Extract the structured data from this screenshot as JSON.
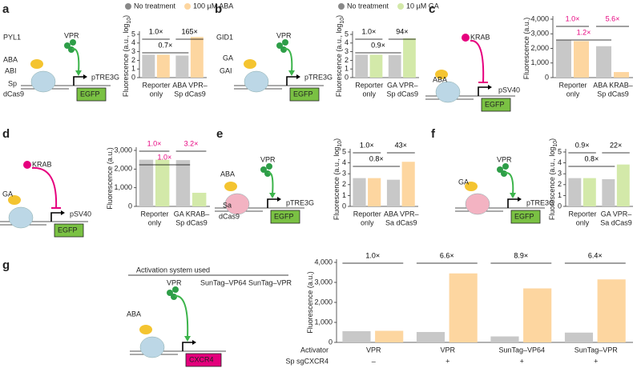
{
  "panels": [
    {
      "letter": "a",
      "labels": [
        "PYL1",
        "VPR",
        "ABA",
        "ABI",
        "Sp",
        "dCas9",
        "pTRE3G",
        "EGFP"
      ]
    },
    {
      "letter": "b",
      "labels": [
        "GID1",
        "VPR",
        "GA",
        "GAI",
        "pTRE3G",
        "EGFP"
      ]
    },
    {
      "letter": "c",
      "labels": [
        "KRAB",
        "ABA",
        "pSV40",
        "EGFP"
      ]
    },
    {
      "letter": "d",
      "labels": [
        "KRAB",
        "GA",
        "pSV40",
        "EGFP"
      ]
    },
    {
      "letter": "e",
      "labels": [
        "VPR",
        "ABA",
        "Sa",
        "dCas9",
        "pTRE3G",
        "EGFP"
      ]
    },
    {
      "letter": "f",
      "labels": [
        "VPR",
        "GA",
        "pTRE3G",
        "EGFP"
      ]
    },
    {
      "letter": "g",
      "labels": [
        "Activation system used",
        "VPR",
        "SunTag–VP64",
        "SunTag–VPR",
        "ABA",
        "CXCR4"
      ]
    }
  ],
  "chart_data": [
    {
      "type": "bar",
      "ylabel": "Fluorescence (a.u., log",
      "ylabel_sub": "10",
      "ylabel_end": ")",
      "categories": [
        [
          "Reporter",
          "only"
        ],
        [
          "ABA VPR–",
          "Sp dCas9"
        ]
      ],
      "series": [
        {
          "name": "No treatment",
          "color": "#c8c8c8",
          "values": [
            2.65,
            2.55
          ]
        },
        {
          "name": "100 µM ABA",
          "color": "#fdd6a0",
          "values": [
            2.65,
            4.7
          ]
        }
      ],
      "ylim": [
        0,
        5
      ],
      "yticks": [
        0,
        1,
        2,
        3,
        4,
        5
      ],
      "annotations": [
        "1.0×",
        "0.7×",
        "165×"
      ],
      "annotation_color": "#000000"
    },
    {
      "type": "bar",
      "ylabel": "Fluorescence (a.u., log",
      "ylabel_sub": "10",
      "ylabel_end": ")",
      "categories": [
        [
          "Reporter",
          "only"
        ],
        [
          "GA VPR–",
          "Sp dCas9"
        ]
      ],
      "series": [
        {
          "name": "No treatment",
          "color": "#c8c8c8",
          "values": [
            2.65,
            2.6
          ]
        },
        {
          "name": "10 µM GA",
          "color": "#d3e9a9",
          "values": [
            2.65,
            4.55
          ]
        }
      ],
      "ylim": [
        0,
        5
      ],
      "yticks": [
        0,
        1,
        2,
        3,
        4,
        5
      ],
      "annotations": [
        "1.0×",
        "0.9×",
        "94×"
      ],
      "annotation_color": "#000000"
    },
    {
      "type": "bar",
      "ylabel": "Fluorescence (a.u.)",
      "categories": [
        [
          "Reporter",
          "only"
        ],
        [
          "ABA KRAB–",
          "Sp dCas9"
        ]
      ],
      "series": [
        {
          "color": "#c8c8c8",
          "values": [
            2550,
            2150
          ]
        },
        {
          "color": "#fdd6a0",
          "values": [
            2500,
            380
          ]
        }
      ],
      "ylim": [
        0,
        4000
      ],
      "yticks": [
        0,
        {
          "value": 1000,
          "label": "1,000"
        },
        {
          "value": 2000,
          "label": "2,000"
        },
        {
          "value": 3000,
          "label": "3,000"
        },
        {
          "value": 4000,
          "label": "4,000"
        }
      ],
      "annotations": [
        "1.0×",
        "1.2×",
        "5.6×"
      ],
      "annotation_color": "#e6007e"
    },
    {
      "type": "bar",
      "ylabel": "Fluorescence (a.u.)",
      "categories": [
        [
          "Reporter",
          "only"
        ],
        [
          "GA KRAB–",
          "Sp dCas9"
        ]
      ],
      "series": [
        {
          "color": "#c8c8c8",
          "values": [
            2500,
            2480
          ]
        },
        {
          "color": "#d3e9a9",
          "values": [
            2500,
            730
          ]
        }
      ],
      "ylim": [
        0,
        3000
      ],
      "yticks": [
        0,
        {
          "value": 1000,
          "label": "1,000"
        },
        {
          "value": 2000,
          "label": "2,000"
        },
        {
          "value": 3000,
          "label": "3,000"
        }
      ],
      "annotations": [
        "1.0×",
        "1.0×",
        "3.2×"
      ],
      "annotation_color": "#e6007e"
    },
    {
      "type": "bar",
      "ylabel": "Fluorescence (a.u., log",
      "ylabel_sub": "10",
      "ylabel_end": ")",
      "categories": [
        [
          "Reporter",
          "only"
        ],
        [
          "ABA VPR–",
          "Sa dCas9"
        ]
      ],
      "series": [
        {
          "color": "#c8c8c8",
          "values": [
            2.6,
            2.45
          ]
        },
        {
          "color": "#fdd6a0",
          "values": [
            2.6,
            4.1
          ]
        }
      ],
      "ylim": [
        0,
        5
      ],
      "yticks": [
        0,
        1,
        2,
        3,
        4,
        5
      ],
      "annotations": [
        "1.0×",
        "0.8×",
        "43×"
      ],
      "annotation_color": "#000000"
    },
    {
      "type": "bar",
      "ylabel": "Fluorescence (a.u., log",
      "ylabel_sub": "10",
      "ylabel_end": ")",
      "categories": [
        [
          "Reporter",
          "only"
        ],
        [
          "GA VPR–",
          "Sa dCas9"
        ]
      ],
      "series": [
        {
          "color": "#c8c8c8",
          "values": [
            2.6,
            2.5
          ]
        },
        {
          "color": "#d3e9a9",
          "values": [
            2.6,
            3.85
          ]
        }
      ],
      "ylim": [
        0,
        5
      ],
      "yticks": [
        0,
        1,
        2,
        3,
        4,
        5
      ],
      "annotations": [
        "0.9×",
        "0.8×",
        "22×"
      ],
      "annotation_color": "#000000"
    },
    {
      "type": "bar",
      "ylabel": "Fluorescence (a.u.)",
      "categories": [
        "VPR",
        "VPR",
        "SunTag–VP64",
        "SunTag–VPR"
      ],
      "sgrna": [
        "–",
        "+",
        "+",
        "+"
      ],
      "row_labels": [
        "Activator",
        "Sp sgCXCR4"
      ],
      "series": [
        {
          "color": "#c8c8c8",
          "values": [
            560,
            520,
            300,
            490
          ]
        },
        {
          "color": "#fdd6a0",
          "values": [
            580,
            3450,
            2700,
            3150
          ]
        }
      ],
      "ylim": [
        0,
        4000
      ],
      "yticks": [
        0,
        {
          "value": 1000,
          "label": "1,000"
        },
        {
          "value": 2000,
          "label": "2,000"
        },
        {
          "value": 3000,
          "label": "3,000"
        },
        {
          "value": 4000,
          "label": "4,000"
        }
      ],
      "annotations": [
        "1.0×",
        "6.6×",
        "8.9×",
        "6.4×"
      ],
      "annotation_color": "#000000"
    }
  ]
}
